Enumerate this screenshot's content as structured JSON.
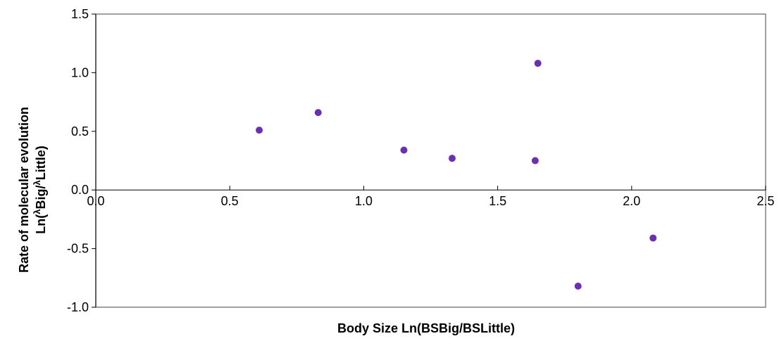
{
  "chart_data": {
    "type": "scatter",
    "title": "",
    "xlabel": "Body Size Ln(BSBig/BSLittle)",
    "ylabel": {
      "line1": "Rate of molecular evolution",
      "line2_prefix": "Ln(",
      "sup1": "λ",
      "sub1": "Big",
      "slash": "/",
      "sup2": "λ",
      "sub2": "Little",
      "close": ")"
    },
    "xlim": [
      0.0,
      2.5
    ],
    "ylim": [
      -1.0,
      1.5
    ],
    "x_ticks": [
      "0.0",
      "0.5",
      "1.0",
      "1.5",
      "2.0",
      "2.5"
    ],
    "y_ticks": [
      "1.5",
      "1.0",
      "0.5",
      "0.0",
      "-0.5",
      "-1.0"
    ],
    "grid": false,
    "legend": "none",
    "marker_color": "#6b2fb3",
    "series": [
      {
        "x": [
          0.61,
          0.83,
          1.15,
          1.33,
          1.64,
          1.65,
          1.8,
          2.08
        ],
        "y": [
          0.51,
          0.66,
          0.34,
          0.27,
          0.25,
          1.08,
          -0.82,
          -0.41
        ]
      }
    ]
  }
}
